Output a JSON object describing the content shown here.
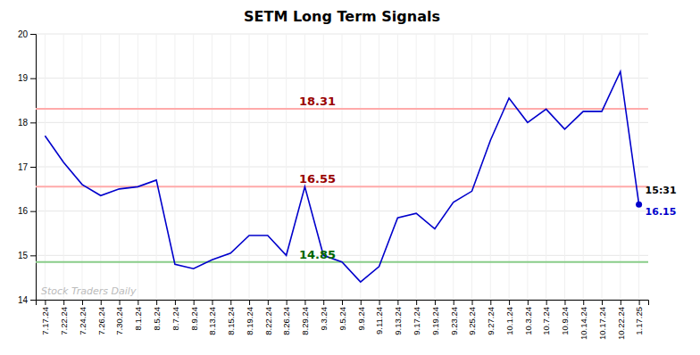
{
  "chart_data": {
    "type": "line",
    "title": "SETM Long Term Signals",
    "categories": [
      "7.17.24",
      "7.22.24",
      "7.24.24",
      "7.26.24",
      "7.30.24",
      "8.1.24",
      "8.5.24",
      "8.7.24",
      "8.9.24",
      "8.13.24",
      "8.15.24",
      "8.19.24",
      "8.22.24",
      "8.26.24",
      "8.29.24",
      "9.3.24",
      "9.5.24",
      "9.9.24",
      "9.11.24",
      "9.13.24",
      "9.17.24",
      "9.19.24",
      "9.23.24",
      "9.25.24",
      "9.27.24",
      "10.1.24",
      "10.3.24",
      "10.7.24",
      "10.9.24",
      "10.14.24",
      "10.17.24",
      "10.22.24",
      "1.17.25"
    ],
    "series": [
      {
        "color": "#0000cc",
        "values": [
          17.7,
          17.1,
          16.6,
          16.35,
          16.5,
          16.55,
          16.7,
          14.8,
          14.7,
          14.9,
          15.05,
          15.45,
          15.45,
          15.0,
          16.55,
          15.0,
          14.85,
          14.4,
          14.75,
          15.85,
          15.95,
          15.6,
          16.2,
          16.45,
          17.6,
          18.55,
          18.0,
          18.3,
          17.85,
          18.25,
          18.25,
          19.15,
          16.15
        ],
        "value_labels": [
          null,
          null,
          null,
          null,
          null,
          null,
          null,
          null,
          null,
          null,
          null,
          null,
          null,
          null,
          null,
          null,
          null,
          null,
          null,
          null,
          null,
          null,
          null,
          null,
          null,
          null,
          null,
          null,
          null,
          null,
          null,
          null,
          "16.15"
        ]
      }
    ],
    "hlines": [
      {
        "value": 18.31,
        "label": "18.31",
        "color": "#ffaaaa",
        "label_color": "#990000"
      },
      {
        "value": 16.55,
        "label": "16.55",
        "color": "#ffaaaa",
        "label_color": "#990000"
      },
      {
        "value": 14.85,
        "label": "14.85",
        "color": "#88cc88",
        "label_color": "#006600"
      }
    ],
    "last_label": "15:31",
    "watermark": "Stock Traders Daily",
    "ylim": [
      14,
      20
    ],
    "yticks": [
      14,
      15,
      16,
      17,
      18,
      19,
      20
    ],
    "grid": true
  }
}
